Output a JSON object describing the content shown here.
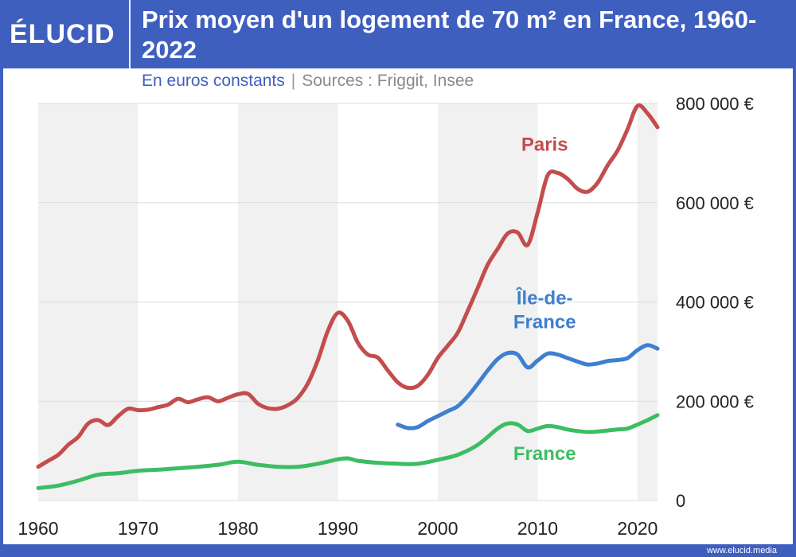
{
  "brand": {
    "logo": "ÉLUCID",
    "footer": "www.elucid.media"
  },
  "title": "Prix moyen d'un logement de 70 m² en France, 1960-2022",
  "subtitle": {
    "units": "En euros constants",
    "separator": "|",
    "sources": "Sources : Friggit, Insee"
  },
  "colors": {
    "background": "#3f5fbf",
    "paris": "#c34d4d",
    "idf": "#3e7fcf",
    "france": "#3dbd63",
    "band": "#f1f1f1"
  },
  "chart_data": {
    "type": "line",
    "xlim": [
      1960,
      2022
    ],
    "ylim": [
      0,
      800000
    ],
    "x_ticks": [
      {
        "value": 1960,
        "label": "1960"
      },
      {
        "value": 1970,
        "label": "1970"
      },
      {
        "value": 1980,
        "label": "1980"
      },
      {
        "value": 1990,
        "label": "1990"
      },
      {
        "value": 2000,
        "label": "2000"
      },
      {
        "value": 2010,
        "label": "2010"
      },
      {
        "value": 2020,
        "label": "2020"
      }
    ],
    "y_ticks": [
      {
        "value": 0,
        "label": "0"
      },
      {
        "value": 200000,
        "label": "200 000 €"
      },
      {
        "value": 400000,
        "label": "400 000 €"
      },
      {
        "value": 600000,
        "label": "600 000 €"
      },
      {
        "value": 800000,
        "label": "800 000 €"
      }
    ],
    "series": [
      {
        "name": "Paris",
        "color": "#c34d4d",
        "label_lines": [
          "Paris"
        ],
        "label_at": [
          2010.7,
          705000
        ],
        "points": [
          [
            1960,
            68000
          ],
          [
            1961,
            80000
          ],
          [
            1962,
            92000
          ],
          [
            1963,
            112000
          ],
          [
            1964,
            128000
          ],
          [
            1965,
            155000
          ],
          [
            1966,
            162000
          ],
          [
            1967,
            152000
          ],
          [
            1968,
            170000
          ],
          [
            1969,
            185000
          ],
          [
            1970,
            182000
          ],
          [
            1971,
            183000
          ],
          [
            1972,
            188000
          ],
          [
            1973,
            193000
          ],
          [
            1974,
            205000
          ],
          [
            1975,
            198000
          ],
          [
            1976,
            204000
          ],
          [
            1977,
            208000
          ],
          [
            1978,
            200000
          ],
          [
            1979,
            207000
          ],
          [
            1980,
            214000
          ],
          [
            1981,
            215000
          ],
          [
            1982,
            195000
          ],
          [
            1983,
            186000
          ],
          [
            1984,
            185000
          ],
          [
            1985,
            192000
          ],
          [
            1986,
            207000
          ],
          [
            1987,
            236000
          ],
          [
            1988,
            283000
          ],
          [
            1989,
            342000
          ],
          [
            1990,
            378000
          ],
          [
            1991,
            362000
          ],
          [
            1992,
            318000
          ],
          [
            1993,
            294000
          ],
          [
            1994,
            288000
          ],
          [
            1995,
            262000
          ],
          [
            1996,
            238000
          ],
          [
            1997,
            227000
          ],
          [
            1998,
            231000
          ],
          [
            1999,
            253000
          ],
          [
            2000,
            287000
          ],
          [
            2001,
            312000
          ],
          [
            2002,
            338000
          ],
          [
            2003,
            382000
          ],
          [
            2004,
            428000
          ],
          [
            2005,
            475000
          ],
          [
            2006,
            507000
          ],
          [
            2007,
            538000
          ],
          [
            2008,
            540000
          ],
          [
            2009,
            515000
          ],
          [
            2010,
            580000
          ],
          [
            2011,
            655000
          ],
          [
            2012,
            660000
          ],
          [
            2013,
            648000
          ],
          [
            2014,
            628000
          ],
          [
            2015,
            622000
          ],
          [
            2016,
            640000
          ],
          [
            2017,
            675000
          ],
          [
            2018,
            705000
          ],
          [
            2019,
            748000
          ],
          [
            2020,
            795000
          ],
          [
            2021,
            780000
          ],
          [
            2022,
            752000
          ]
        ]
      },
      {
        "name": "Île-de-France",
        "color": "#3e7fcf",
        "label_lines": [
          "Île-de-",
          "France"
        ],
        "label_at": [
          2010.7,
          395000
        ],
        "points": [
          [
            1996,
            153000
          ],
          [
            1997,
            146000
          ],
          [
            1998,
            148000
          ],
          [
            1999,
            160000
          ],
          [
            2000,
            170000
          ],
          [
            2001,
            180000
          ],
          [
            2002,
            190000
          ],
          [
            2003,
            210000
          ],
          [
            2004,
            235000
          ],
          [
            2005,
            262000
          ],
          [
            2006,
            285000
          ],
          [
            2007,
            297000
          ],
          [
            2008,
            294000
          ],
          [
            2009,
            268000
          ],
          [
            2010,
            282000
          ],
          [
            2011,
            296000
          ],
          [
            2012,
            294000
          ],
          [
            2013,
            287000
          ],
          [
            2014,
            280000
          ],
          [
            2015,
            274000
          ],
          [
            2016,
            276000
          ],
          [
            2017,
            281000
          ],
          [
            2018,
            283000
          ],
          [
            2019,
            287000
          ],
          [
            2020,
            303000
          ],
          [
            2021,
            313000
          ],
          [
            2022,
            306000
          ]
        ]
      },
      {
        "name": "France",
        "color": "#3dbd63",
        "label_lines": [
          "France"
        ],
        "label_at": [
          2010.7,
          82000
        ],
        "points": [
          [
            1960,
            25000
          ],
          [
            1962,
            30000
          ],
          [
            1964,
            40000
          ],
          [
            1966,
            52000
          ],
          [
            1968,
            55000
          ],
          [
            1970,
            60000
          ],
          [
            1972,
            62000
          ],
          [
            1974,
            65000
          ],
          [
            1976,
            68000
          ],
          [
            1978,
            72000
          ],
          [
            1980,
            78000
          ],
          [
            1982,
            72000
          ],
          [
            1984,
            68000
          ],
          [
            1986,
            68000
          ],
          [
            1988,
            74000
          ],
          [
            1990,
            83000
          ],
          [
            1991,
            85000
          ],
          [
            1992,
            80000
          ],
          [
            1994,
            76000
          ],
          [
            1996,
            74000
          ],
          [
            1998,
            74000
          ],
          [
            2000,
            82000
          ],
          [
            2002,
            92000
          ],
          [
            2004,
            112000
          ],
          [
            2006,
            145000
          ],
          [
            2007,
            155000
          ],
          [
            2008,
            153000
          ],
          [
            2009,
            140000
          ],
          [
            2010,
            145000
          ],
          [
            2011,
            150000
          ],
          [
            2012,
            148000
          ],
          [
            2013,
            143000
          ],
          [
            2014,
            140000
          ],
          [
            2015,
            138000
          ],
          [
            2016,
            139000
          ],
          [
            2017,
            141000
          ],
          [
            2018,
            143000
          ],
          [
            2019,
            145000
          ],
          [
            2020,
            153000
          ],
          [
            2021,
            162000
          ],
          [
            2022,
            172000
          ]
        ]
      }
    ]
  }
}
